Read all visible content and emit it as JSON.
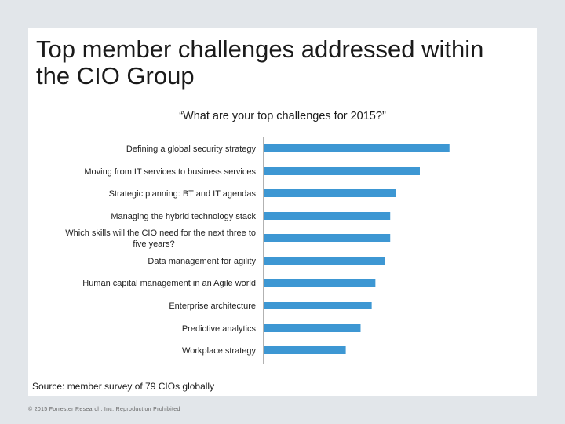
{
  "slide": {
    "title": "Top member challenges addressed within the CIO Group",
    "source": "Source: member survey of 79 CIOs globally",
    "copyright": "© 2015 Forrester Research, Inc. Reproduction Prohibited"
  },
  "chart_data": {
    "type": "bar",
    "orientation": "horizontal",
    "title": "“What are your top challenges for 2015?”",
    "xlabel": "",
    "ylabel": "",
    "xlim": [
      0,
      100
    ],
    "grid": false,
    "bar_color": "#3d97d3",
    "axis_color": "#999999",
    "categories": [
      [
        "Defining a global security strategy"
      ],
      [
        "Moving from IT services to business services"
      ],
      [
        "Strategic planning: BT and IT agendas"
      ],
      [
        "Managing the hybrid technology stack"
      ],
      [
        "Which skills will the CIO need for the next three to",
        "five years?"
      ],
      [
        "Data management for agility"
      ],
      [
        "Human capital management in an Agile world"
      ],
      [
        "Enterprise architecture"
      ],
      [
        "Predictive analytics"
      ],
      [
        "Workplace strategy"
      ]
    ],
    "values": [
      100,
      84,
      71,
      68,
      68,
      65,
      60,
      58,
      52,
      44
    ]
  }
}
